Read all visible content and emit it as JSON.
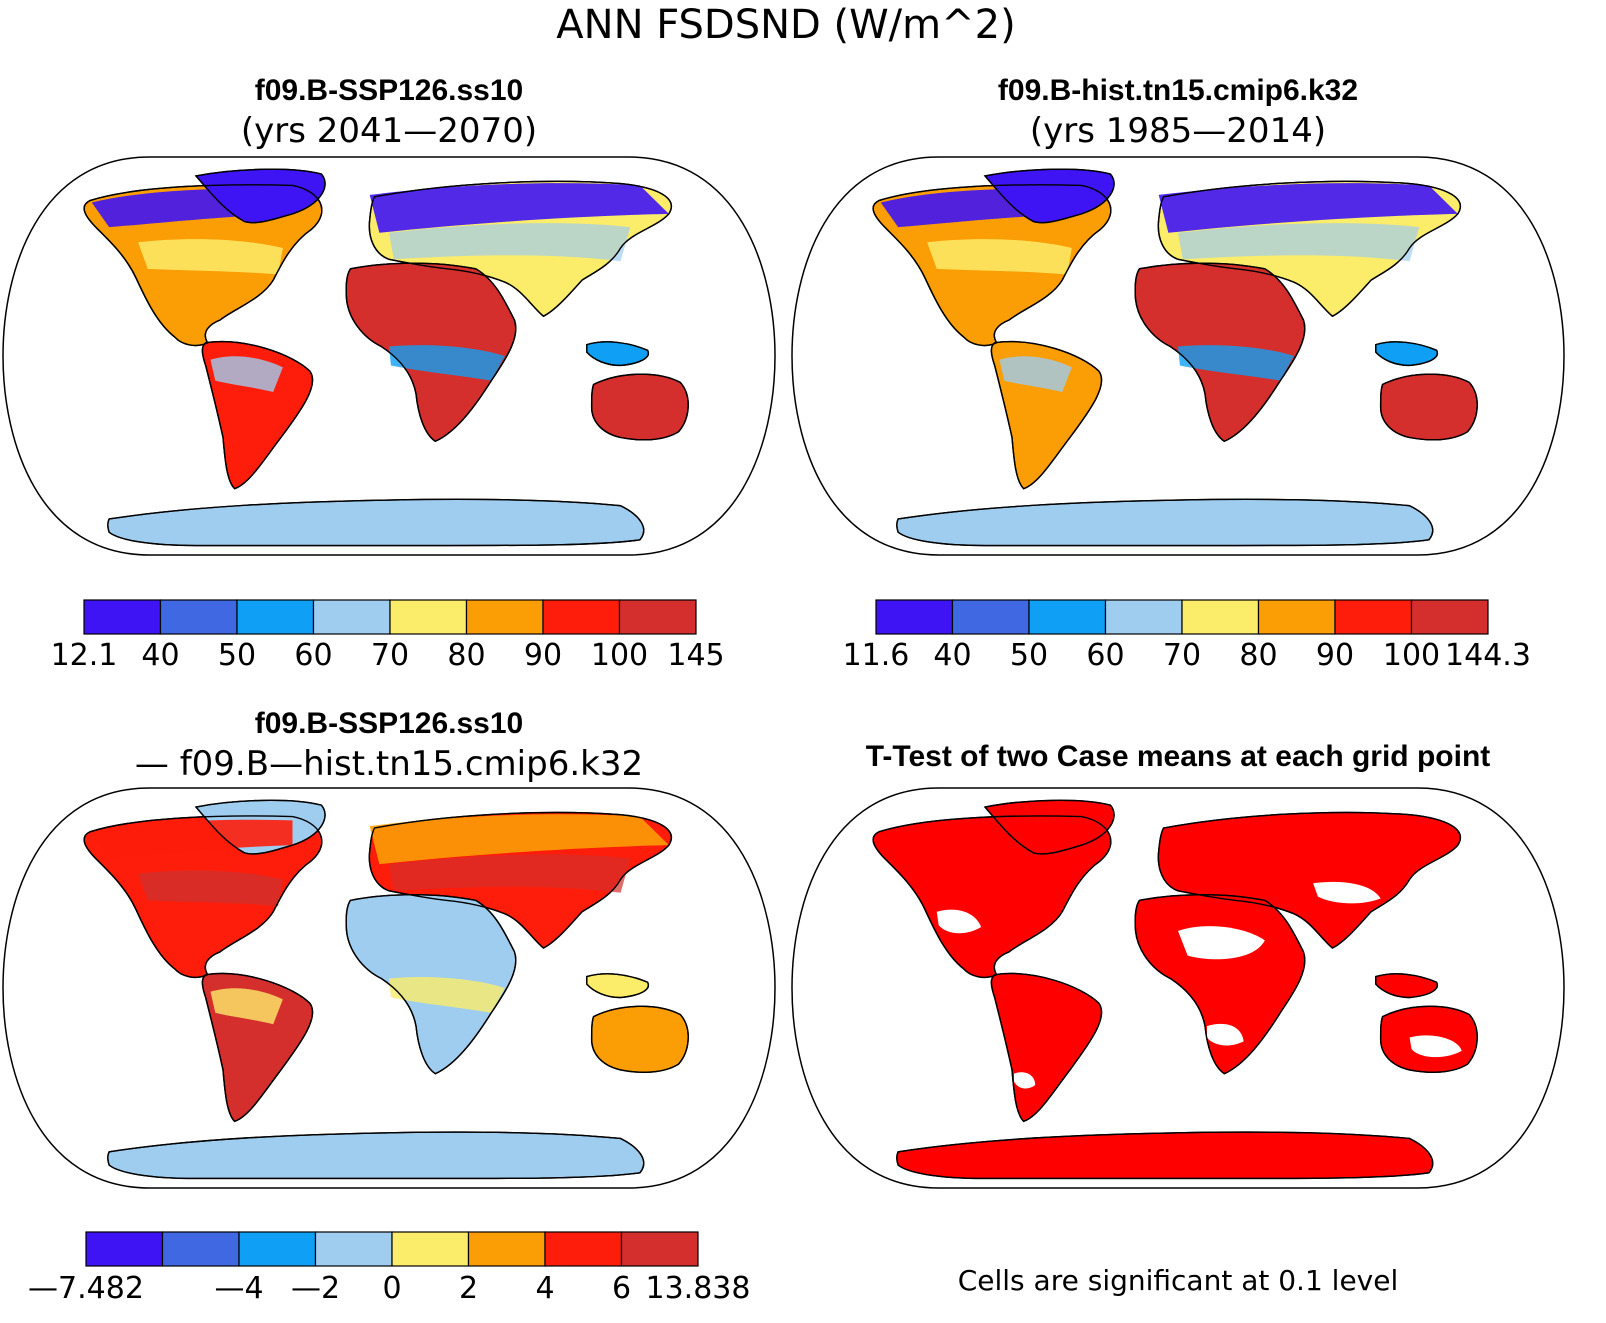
{
  "title": "ANN FSDSND (W/m^2)",
  "colors": {
    "land_outline": "#000000",
    "ocean": "#ffffff",
    "significant": "#ff0000",
    "palette_8": [
      "#3e14f4",
      "#4168e3",
      "#0fa0f5",
      "#9fcdf0",
      "#fbec6a",
      "#fb9d05",
      "#fd1d0a",
      "#d42f2c"
    ]
  },
  "panels": [
    {
      "id": "top-left",
      "title_line1": "f09.B-SSP126.ss10",
      "title_line2": "(yrs 2041—2070)",
      "colorbar_labels": [
        "12.1",
        "40",
        "50",
        "60",
        "70",
        "80",
        "90",
        "100",
        "145"
      ],
      "fill": {
        "north_america": 5,
        "south_america": 6,
        "europe_asia": 4,
        "africa": 7,
        "australia": 7,
        "greenland": 0,
        "antarctica": 3,
        "asia_south": 6,
        "indonesia": 2
      }
    },
    {
      "id": "top-right",
      "title_line1": "f09.B-hist.tn15.cmip6.k32",
      "title_line2": "(yrs 1985—2014)",
      "colorbar_labels": [
        "11.6",
        "40",
        "50",
        "60",
        "70",
        "80",
        "90",
        "100",
        "144.3"
      ],
      "fill": {
        "north_america": 5,
        "south_america": 5,
        "europe_asia": 4,
        "africa": 7,
        "australia": 7,
        "greenland": 0,
        "antarctica": 3,
        "asia_south": 6,
        "indonesia": 2
      }
    },
    {
      "id": "bottom-left",
      "title_line1": "f09.B-SSP126.ss10",
      "title_line2": "— f09.B—hist.tn15.cmip6.k32",
      "colorbar_labels": [
        "—7.482",
        "",
        "—4",
        "—2",
        "0",
        "2",
        "4",
        "6",
        "13.838"
      ],
      "fill": {
        "north_america": 6,
        "south_america": 7,
        "europe_asia": 6,
        "africa": 3,
        "australia": 5,
        "greenland": 3,
        "antarctica": 3,
        "asia_south": 5,
        "indonesia": 4
      }
    },
    {
      "id": "bottom-right",
      "title_line1": "T-Test of two Case means at each grid point",
      "title_line2": "",
      "footnote": "Cells are significant at 0.1 level"
    }
  ]
}
